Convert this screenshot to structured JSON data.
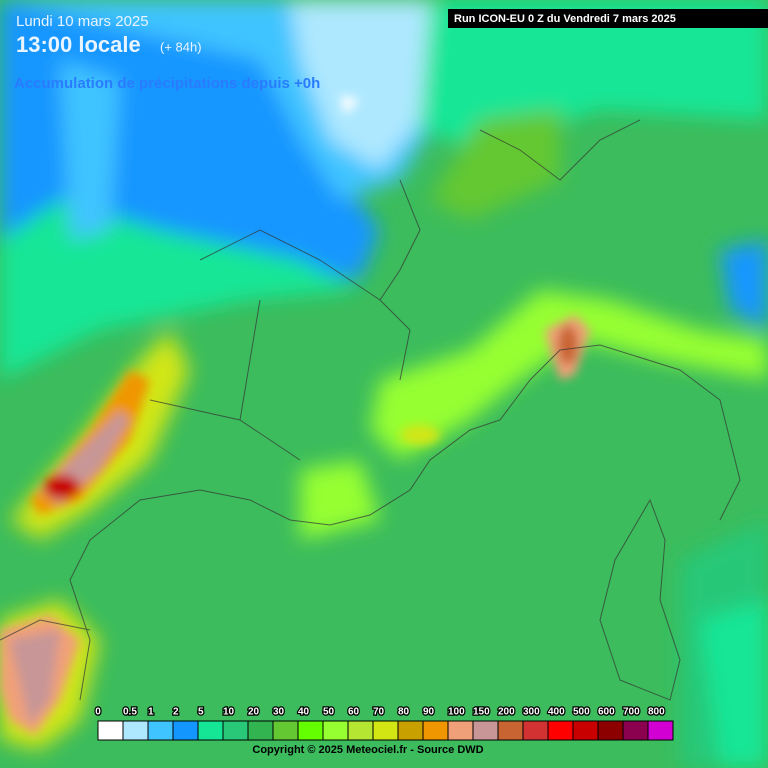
{
  "header": {
    "date": "Lundi 10 mars 2025",
    "time": "13:00 locale",
    "lead": "(+ 84h)",
    "subtitle": "Accumulation de précipitations depuis +0h",
    "run": "Run ICON-EU 0 Z du Vendredi 7 mars 2025"
  },
  "legend": {
    "labels": [
      0,
      0.5,
      1,
      2,
      5,
      10,
      20,
      30,
      40,
      50,
      60,
      70,
      80,
      90,
      100,
      150,
      200,
      300,
      400,
      500,
      600,
      700,
      800
    ],
    "colors": [
      "#ffffff",
      "#aee8ff",
      "#40c4ff",
      "#1496ff",
      "#14e696",
      "#28c878",
      "#32b450",
      "#64c832",
      "#64ff00",
      "#96ff32",
      "#b4e632",
      "#d2e614",
      "#c8a000",
      "#f09600",
      "#f0a078",
      "#c89696",
      "#c86432",
      "#d23232",
      "#ff0000",
      "#c80000",
      "#8c0000",
      "#8c0050",
      "#d200d2"
    ]
  },
  "footer": {
    "copyright": "Copyright © 2025 Meteociel.fr - Source DWD"
  }
}
